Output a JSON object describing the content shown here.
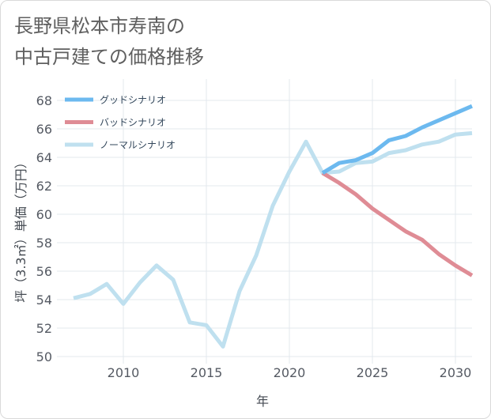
{
  "title": {
    "line1": "長野県松本市寿南の",
    "line2": "中古戸建ての価格推移"
  },
  "chart_data": {
    "type": "line",
    "xlabel": "年",
    "ylabel": "坪（3.3㎡）単価（万円）",
    "xlim": [
      2006,
      2031
    ],
    "ylim": [
      49.5,
      69.5
    ],
    "xticks": [
      2010,
      2015,
      2020,
      2025,
      2030
    ],
    "yticks": [
      50,
      52,
      54,
      56,
      58,
      60,
      62,
      64,
      66,
      68
    ],
    "legend_position": "top-left",
    "series": [
      {
        "name": "グッドシナリオ",
        "color": "#6cb9ef",
        "x": [
          2022,
          2023,
          2024,
          2025,
          2026,
          2027,
          2028,
          2029,
          2030,
          2031
        ],
        "y": [
          62.9,
          63.6,
          63.8,
          64.3,
          65.2,
          65.5,
          66.1,
          66.6,
          67.1,
          67.6
        ]
      },
      {
        "name": "バッドシナリオ",
        "color": "#df8c95",
        "x": [
          2022,
          2023,
          2024,
          2025,
          2026,
          2027,
          2028,
          2029,
          2030,
          2031
        ],
        "y": [
          62.9,
          62.2,
          61.4,
          60.4,
          59.6,
          58.8,
          58.2,
          57.2,
          56.4,
          55.7
        ]
      },
      {
        "name": "ノーマルシナリオ",
        "color": "#bfe0ef",
        "x": [
          2007,
          2008,
          2009,
          2010,
          2011,
          2012,
          2013,
          2014,
          2015,
          2016,
          2017,
          2018,
          2019,
          2020,
          2021,
          2022,
          2023,
          2024,
          2025,
          2026,
          2027,
          2028,
          2029,
          2030,
          2031
        ],
        "y": [
          54.1,
          54.4,
          55.1,
          53.7,
          55.2,
          56.4,
          55.4,
          52.4,
          52.2,
          50.7,
          54.6,
          57.1,
          60.6,
          63.0,
          65.1,
          62.9,
          63.0,
          63.6,
          63.7,
          64.3,
          64.5,
          64.9,
          65.1,
          65.6,
          65.7
        ]
      }
    ]
  }
}
